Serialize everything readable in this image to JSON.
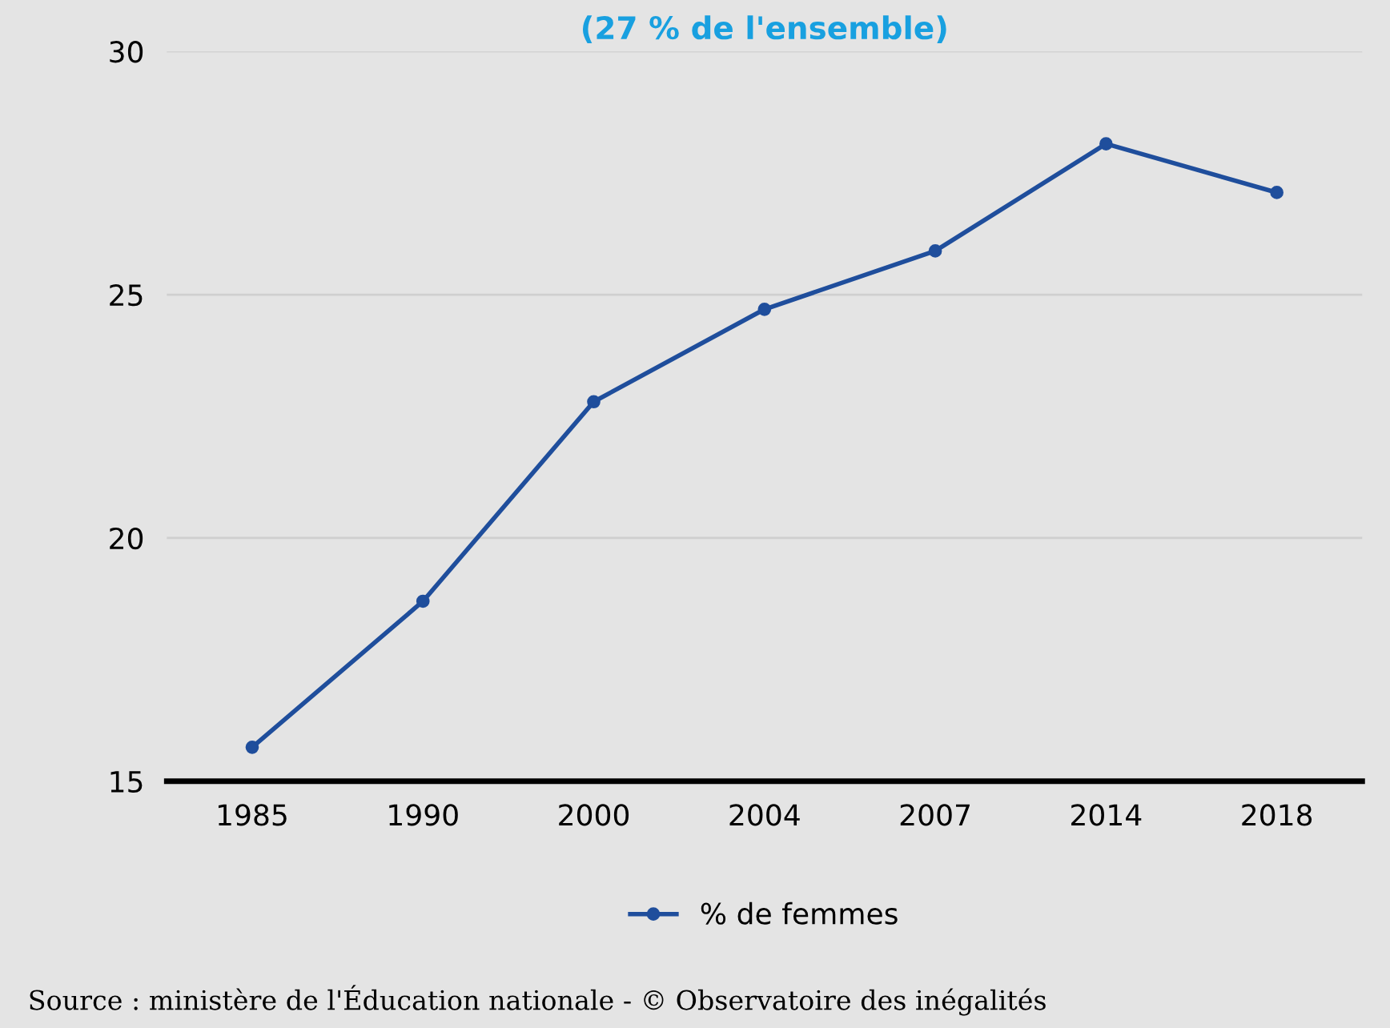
{
  "chart_data": {
    "type": "line",
    "subtitle": "(27 % de l'ensemble)",
    "categories": [
      "1985",
      "1990",
      "2000",
      "2004",
      "2007",
      "2014",
      "2018"
    ],
    "series": [
      {
        "name": "% de femmes",
        "color": "#1f4e9c",
        "values": [
          15.7,
          18.7,
          22.8,
          24.7,
          25.9,
          28.1,
          27.1
        ]
      }
    ],
    "ylim": [
      15,
      30
    ],
    "yticks": [
      15,
      20,
      25,
      30
    ],
    "grid": "y",
    "legend": "bottom",
    "marker": "circle",
    "annotations": [
      "Source : ministère de l'Éducation nationale - © Observatoire des inégalités"
    ]
  }
}
